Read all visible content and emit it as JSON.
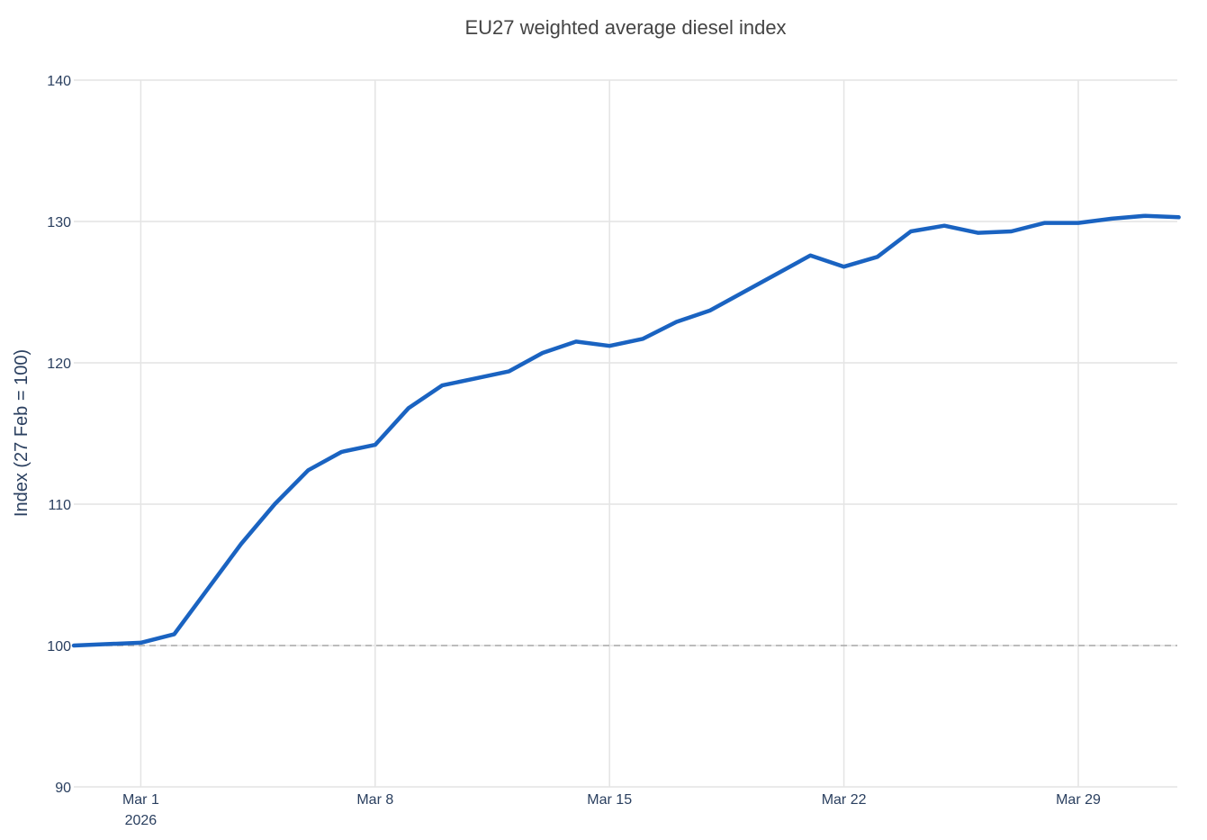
{
  "chart_data": {
    "type": "line",
    "title": "EU27 weighted average diesel index",
    "xlabel": "",
    "ylabel": "Index (27 Feb = 100)",
    "ylim": [
      90,
      140
    ],
    "xlim": [
      "2026-02-27",
      "2026-04-01"
    ],
    "y_ticks": [
      90,
      100,
      110,
      120,
      130,
      140
    ],
    "x_ticks": [
      {
        "date": "2026-03-01",
        "label": "Mar 1",
        "sublabel": "2026"
      },
      {
        "date": "2026-03-08",
        "label": "Mar 8",
        "sublabel": ""
      },
      {
        "date": "2026-03-15",
        "label": "Mar 15",
        "sublabel": ""
      },
      {
        "date": "2026-03-22",
        "label": "Mar 22",
        "sublabel": ""
      },
      {
        "date": "2026-03-29",
        "label": "Mar 29",
        "sublabel": ""
      }
    ],
    "grid": true,
    "reference_line": {
      "y": 100,
      "style": "dashed",
      "color": "#aaaaaa"
    },
    "series": [
      {
        "color": "#1a63c1",
        "x": [
          "2026-02-27",
          "2026-02-28",
          "2026-03-01",
          "2026-03-02",
          "2026-03-03",
          "2026-03-04",
          "2026-03-05",
          "2026-03-06",
          "2026-03-07",
          "2026-03-08",
          "2026-03-09",
          "2026-03-10",
          "2026-03-11",
          "2026-03-12",
          "2026-03-13",
          "2026-03-14",
          "2026-03-15",
          "2026-03-16",
          "2026-03-17",
          "2026-03-18",
          "2026-03-19",
          "2026-03-20",
          "2026-03-21",
          "2026-03-22",
          "2026-03-23",
          "2026-03-24",
          "2026-03-25",
          "2026-03-26",
          "2026-03-27",
          "2026-03-28",
          "2026-03-29",
          "2026-03-30",
          "2026-03-31",
          "2026-04-01"
        ],
        "y": [
          100.0,
          100.1,
          100.2,
          100.8,
          104.0,
          107.2,
          110.0,
          112.4,
          113.7,
          114.2,
          116.8,
          118.4,
          118.9,
          119.4,
          120.7,
          121.5,
          121.2,
          121.7,
          122.9,
          123.7,
          125.0,
          126.3,
          127.6,
          126.8,
          127.5,
          129.3,
          129.7,
          129.2,
          129.3,
          129.9,
          129.9,
          130.2,
          130.4,
          130.3
        ]
      }
    ]
  }
}
